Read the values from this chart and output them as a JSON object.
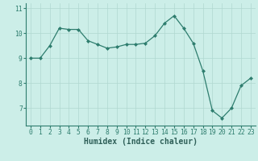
{
  "x": [
    0,
    1,
    2,
    3,
    4,
    5,
    6,
    7,
    8,
    9,
    10,
    11,
    12,
    13,
    14,
    15,
    16,
    17,
    18,
    19,
    20,
    21,
    22,
    23
  ],
  "y": [
    9.0,
    9.0,
    9.5,
    10.2,
    10.15,
    10.15,
    9.7,
    9.55,
    9.4,
    9.45,
    9.55,
    9.55,
    9.6,
    9.9,
    10.4,
    10.7,
    10.2,
    9.6,
    8.5,
    6.9,
    6.6,
    7.0,
    7.9,
    8.2
  ],
  "line_color": "#2e7d6e",
  "marker": "D",
  "markersize": 2.0,
  "linewidth": 0.9,
  "xlabel": "Humidex (Indice chaleur)",
  "xlim": [
    -0.5,
    23.5
  ],
  "ylim": [
    6.3,
    11.2
  ],
  "yticks": [
    7,
    8,
    9,
    10,
    11
  ],
  "xticks": [
    0,
    1,
    2,
    3,
    4,
    5,
    6,
    7,
    8,
    9,
    10,
    11,
    12,
    13,
    14,
    15,
    16,
    17,
    18,
    19,
    20,
    21,
    22,
    23
  ],
  "bg_color": "#cceee8",
  "grid_color": "#b0d8d0",
  "tick_color": "#2e7d6e",
  "label_color": "#2e5f58",
  "xlabel_fontsize": 7.0,
  "tick_fontsize": 5.8
}
